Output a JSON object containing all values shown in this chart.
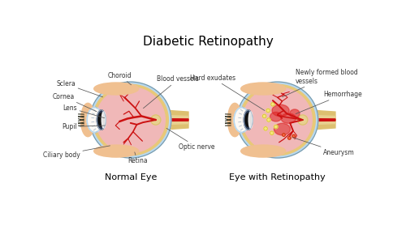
{
  "title": "Diabetic Retinopathy",
  "title_fontsize": 11,
  "background_color": "#ffffff",
  "label_left": "Normal Eye",
  "label_right": "Eye with Retinopathy",
  "eye_bg": "#f0b8b8",
  "sclera_color": "#b8d8ee",
  "choroid_color": "#e8c878",
  "vessel_color": "#cc1111",
  "lens_color": "#f0f0f0",
  "optic_outer_color": "#ddc070",
  "optic_inner_color": "#e8d090",
  "skin_color": "#f0c090",
  "skin_dark": "#d8a070",
  "exudate_color": "#f5e878",
  "exudate_edge": "#d4b830",
  "hemorrhage_color": "#dd2222",
  "hemorrhage_alpha": 0.55,
  "aneurysm_color": "#ff6644",
  "white_color": "#ffffff",
  "dark_color": "#111111",
  "outline_color": "#7799aa",
  "label_fontsize": 5.5,
  "sublabel_fontsize": 8
}
